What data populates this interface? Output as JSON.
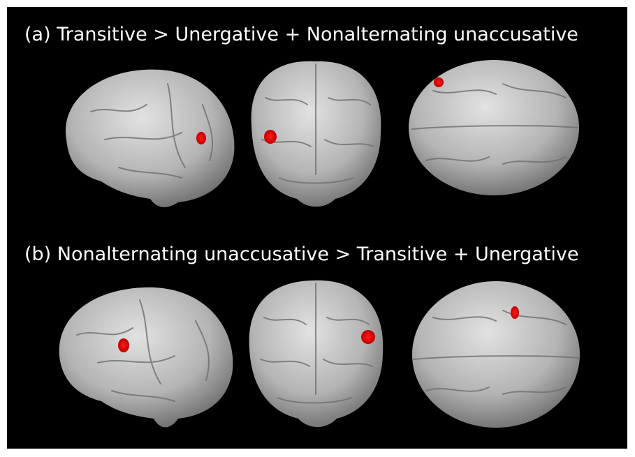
{
  "panels": [
    {
      "title": "(a) Transitive > Unergative + Nonalternating unaccusative"
    },
    {
      "title": "(b) Nonalternating unaccusative > Transitive + Unergative"
    }
  ]
}
